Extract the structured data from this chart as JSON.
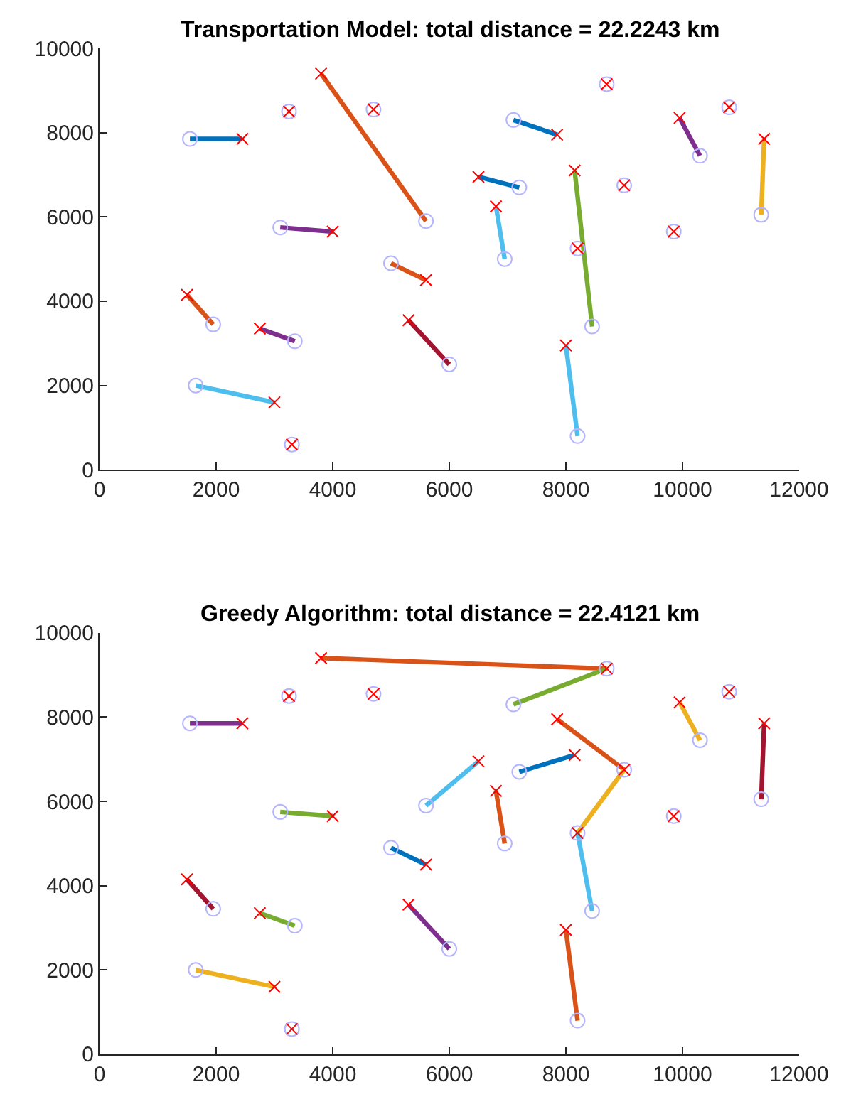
{
  "chart_data": [
    {
      "type": "scatter",
      "title": "Transportation Model: total distance = 22.2243 km",
      "xlim": [
        0,
        12000
      ],
      "ylim": [
        0,
        10000
      ],
      "xticks": [
        0,
        2000,
        4000,
        6000,
        8000,
        10000,
        12000
      ],
      "yticks": [
        0,
        2000,
        4000,
        6000,
        8000,
        10000
      ],
      "grid": false,
      "series": [
        {
          "type": "line",
          "color": "#0072bd",
          "x": [
            1550,
            2450
          ],
          "values": [
            7850,
            7850
          ]
        },
        {
          "type": "line",
          "color": "#d95319",
          "x": [
            5600,
            3800
          ],
          "values": [
            5900,
            9400
          ]
        },
        {
          "type": "line",
          "color": "#7e2f8e",
          "x": [
            3100,
            4000
          ],
          "values": [
            5750,
            5650
          ]
        },
        {
          "type": "line",
          "color": "#d95319",
          "x": [
            1950,
            1500
          ],
          "values": [
            3450,
            4150
          ]
        },
        {
          "type": "line",
          "color": "#7e2f8e",
          "x": [
            3350,
            2750
          ],
          "values": [
            3050,
            3350
          ]
        },
        {
          "type": "line",
          "color": "#4dbeee",
          "x": [
            1650,
            3000
          ],
          "values": [
            2000,
            1600
          ]
        },
        {
          "type": "line",
          "color": "#a2142f",
          "x": [
            6000,
            5300
          ],
          "values": [
            2500,
            3550
          ]
        },
        {
          "type": "line",
          "color": "#d95319",
          "x": [
            5000,
            5600
          ],
          "values": [
            4900,
            4500
          ]
        },
        {
          "type": "line",
          "color": "#0072bd",
          "x": [
            7100,
            7850
          ],
          "values": [
            8300,
            7950
          ]
        },
        {
          "type": "line",
          "color": "#0072bd",
          "x": [
            7200,
            6500
          ],
          "values": [
            6700,
            6950
          ]
        },
        {
          "type": "line",
          "color": "#4dbeee",
          "x": [
            6950,
            6800
          ],
          "values": [
            5000,
            6250
          ]
        },
        {
          "type": "line",
          "color": "#77ac30",
          "x": [
            8450,
            8150
          ],
          "values": [
            3400,
            7100
          ]
        },
        {
          "type": "line",
          "color": "#4dbeee",
          "x": [
            8200,
            8000
          ],
          "values": [
            800,
            2950
          ]
        },
        {
          "type": "line",
          "color": "#7e2f8e",
          "x": [
            10300,
            9950
          ],
          "values": [
            7450,
            8350
          ]
        },
        {
          "type": "line",
          "color": "#edb120",
          "x": [
            11350,
            11400
          ],
          "values": [
            6050,
            7850
          ]
        },
        {
          "marker": "circle",
          "color": "#b4b4ff",
          "x": [
            1550,
            5600,
            3100,
            1950,
            3350,
            1650,
            6000,
            5000,
            7100,
            7200,
            6950,
            8450,
            8200,
            10300,
            11350,
            3250,
            4700,
            3300,
            8700,
            9000,
            8200,
            9850,
            10800
          ],
          "values": [
            7850,
            5900,
            5750,
            3450,
            3050,
            2000,
            2500,
            4900,
            8300,
            6700,
            5000,
            3400,
            800,
            7450,
            6050,
            8500,
            8550,
            600,
            9150,
            6750,
            5250,
            5650,
            8600
          ]
        },
        {
          "marker": "cross",
          "color": "#ff0000",
          "x": [
            2450,
            3800,
            4000,
            1500,
            2750,
            3000,
            5300,
            5600,
            7850,
            6500,
            6800,
            8150,
            8000,
            9950,
            11400,
            3250,
            4700,
            3300,
            8700,
            9000,
            8200,
            9850,
            10800
          ],
          "values": [
            7850,
            9400,
            5650,
            4150,
            3350,
            1600,
            3550,
            4500,
            7950,
            6950,
            6250,
            7100,
            2950,
            8350,
            7850,
            8500,
            8550,
            600,
            9150,
            6750,
            5250,
            5650,
            8600
          ]
        }
      ]
    },
    {
      "type": "scatter",
      "title": "Greedy Algorithm: total distance = 22.4121 km",
      "xlim": [
        0,
        12000
      ],
      "ylim": [
        0,
        10000
      ],
      "xticks": [
        0,
        2000,
        4000,
        6000,
        8000,
        10000,
        12000
      ],
      "yticks": [
        0,
        2000,
        4000,
        6000,
        8000,
        10000
      ],
      "grid": false,
      "series": [
        {
          "type": "line",
          "color": "#7e2f8e",
          "x": [
            1550,
            2450
          ],
          "values": [
            7850,
            7850
          ]
        },
        {
          "type": "line",
          "color": "#d95319",
          "x": [
            8700,
            3800
          ],
          "values": [
            9150,
            9400
          ]
        },
        {
          "type": "line",
          "color": "#77ac30",
          "x": [
            7100,
            8700
          ],
          "values": [
            8300,
            9150
          ]
        },
        {
          "type": "line",
          "color": "#77ac30",
          "x": [
            3100,
            4000
          ],
          "values": [
            5750,
            5650
          ]
        },
        {
          "type": "line",
          "color": "#a2142f",
          "x": [
            1950,
            1500
          ],
          "values": [
            3450,
            4150
          ]
        },
        {
          "type": "line",
          "color": "#77ac30",
          "x": [
            3350,
            2750
          ],
          "values": [
            3050,
            3350
          ]
        },
        {
          "type": "line",
          "color": "#edb120",
          "x": [
            1650,
            3000
          ],
          "values": [
            2000,
            1600
          ]
        },
        {
          "type": "line",
          "color": "#7e2f8e",
          "x": [
            6000,
            5300
          ],
          "values": [
            2500,
            3550
          ]
        },
        {
          "type": "line",
          "color": "#0072bd",
          "x": [
            5000,
            5600
          ],
          "values": [
            4900,
            4500
          ]
        },
        {
          "type": "line",
          "color": "#4dbeee",
          "x": [
            5600,
            6500
          ],
          "values": [
            5900,
            6950
          ]
        },
        {
          "type": "line",
          "color": "#0072bd",
          "x": [
            7200,
            8150
          ],
          "values": [
            6700,
            7100
          ]
        },
        {
          "type": "line",
          "color": "#d95319",
          "x": [
            9000,
            7850
          ],
          "values": [
            6750,
            7950
          ]
        },
        {
          "type": "line",
          "color": "#edb120",
          "x": [
            8200,
            9000
          ],
          "values": [
            5250,
            6750
          ]
        },
        {
          "type": "line",
          "color": "#4dbeee",
          "x": [
            8450,
            8200
          ],
          "values": [
            3400,
            5250
          ]
        },
        {
          "type": "line",
          "color": "#d95319",
          "x": [
            6950,
            6800
          ],
          "values": [
            5000,
            6250
          ]
        },
        {
          "type": "line",
          "color": "#d95319",
          "x": [
            8200,
            8000
          ],
          "values": [
            800,
            2950
          ]
        },
        {
          "type": "line",
          "color": "#edb120",
          "x": [
            10300,
            9950
          ],
          "values": [
            7450,
            8350
          ]
        },
        {
          "type": "line",
          "color": "#a2142f",
          "x": [
            11350,
            11400
          ],
          "values": [
            6050,
            7850
          ]
        },
        {
          "marker": "circle",
          "color": "#b4b4ff",
          "x": [
            1550,
            5600,
            3100,
            1950,
            3350,
            1650,
            6000,
            5000,
            7100,
            7200,
            6950,
            8450,
            8200,
            10300,
            11350,
            3250,
            4700,
            3300,
            8700,
            9000,
            8200,
            9850,
            10800
          ],
          "values": [
            7850,
            5900,
            5750,
            3450,
            3050,
            2000,
            2500,
            4900,
            8300,
            6700,
            5000,
            3400,
            800,
            7450,
            6050,
            8500,
            8550,
            600,
            9150,
            6750,
            5250,
            5650,
            8600
          ]
        },
        {
          "marker": "cross",
          "color": "#ff0000",
          "x": [
            2450,
            3800,
            4000,
            1500,
            2750,
            3000,
            5300,
            5600,
            7850,
            6500,
            6800,
            8150,
            8000,
            9950,
            11400,
            3250,
            4700,
            3300,
            8700,
            9000,
            8200,
            9850,
            10800
          ],
          "values": [
            7850,
            9400,
            5650,
            4150,
            3350,
            1600,
            3550,
            4500,
            7950,
            6950,
            6250,
            7100,
            2950,
            8350,
            7850,
            8500,
            8550,
            600,
            9150,
            6750,
            5250,
            5650,
            8600
          ]
        }
      ]
    }
  ]
}
